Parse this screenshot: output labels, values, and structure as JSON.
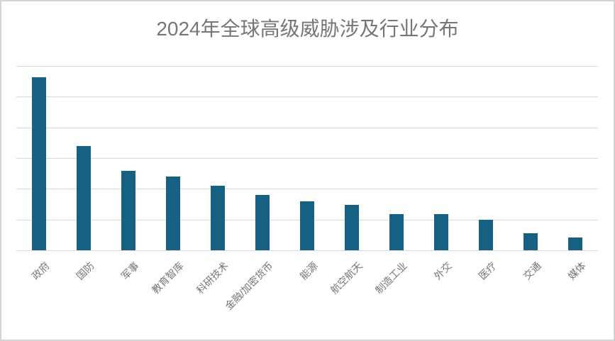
{
  "chart_data": {
    "type": "bar",
    "title": "2024年全球高级威胁涉及行业分布",
    "categories": [
      "政府",
      "国防",
      "军事",
      "教育智库",
      "科研技术",
      "金融/加密货币",
      "能源",
      "航空航天",
      "制造工业",
      "外交",
      "医疗",
      "交通",
      "媒体"
    ],
    "values": [
      5.63,
      3.4,
      2.59,
      2.4,
      2.1,
      1.81,
      1.6,
      1.47,
      1.18,
      1.18,
      1.0,
      0.56,
      0.41
    ],
    "value_note": "y-axis has no tick labels; values estimated in gridline units (1 unit = 1 gridline interval)",
    "xlabel": "",
    "ylabel": "",
    "ylim": [
      0,
      6
    ],
    "gridline_interval": 1,
    "grid": true,
    "legend": false,
    "x_label_rotation_deg": -45,
    "colors": {
      "bar": "#156083",
      "gridline": "#d9d9d9",
      "title": "#767676",
      "axis_label": "#757575",
      "background": "#ffffff",
      "frame_border": "#d5d5d5"
    }
  }
}
